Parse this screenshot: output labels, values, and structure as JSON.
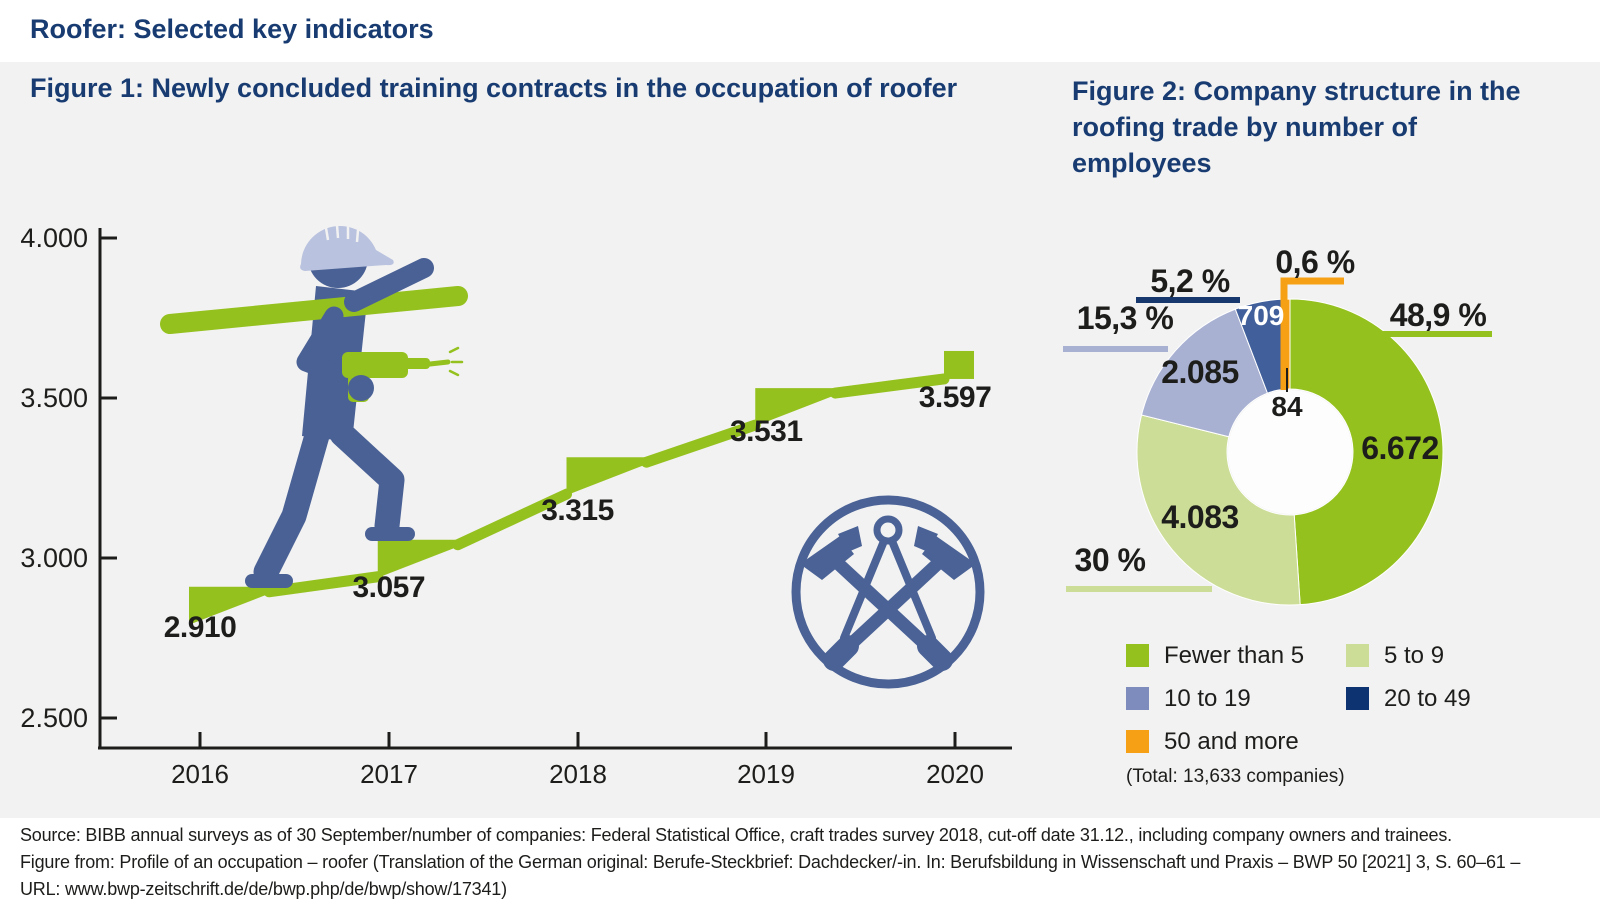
{
  "page": {
    "title": "Roofer: Selected key indicators"
  },
  "figure1": {
    "title": "Figure 1: Newly concluded training contracts in the occupation of roofer"
  },
  "figure2": {
    "title": "Figure 2: Company structure in the roofing trade by number of employees",
    "total_note": "(Total: 13,633 companies)"
  },
  "footer": {
    "lines": [
      "Source: BIBB annual surveys as of 30 September/number of companies: Federal Statistical Office, craft trades survey 2018, cut-off date 31.12., including company owners and trainees.",
      "Figure from: Profile of an occupation – roofer (Translation of the German original: Berufe-Steckbrief: Dachdecker/-in. In: Berufsbildung in Wissenschaft und Praxis – BWP 50 [2021] 3, S. 60–61 –",
      "URL: www.bwp-zeitschrift.de/de/bwp.php/de/bwp/show/17341)"
    ]
  },
  "colors": {
    "title_blue": "#183c72",
    "panel_gray": "#f2f2f2",
    "green": "#95c11f",
    "light_green": "#cbdd96",
    "periwinkle": "#a9b1d2",
    "navy_segment": "#41609b",
    "navy_dark": "#0e3371",
    "orange": "#f6a015",
    "worker_blue": "#4a6195",
    "helmet_blue": "#b9c2de",
    "text_black": "#1d1d1b"
  },
  "chart_data": [
    {
      "type": "line",
      "style": "staircase-pictogram",
      "title": "Figure 1: Newly concluded training contracts in the occupation of roofer",
      "x_labels": [
        "2016",
        "2017",
        "2018",
        "2019",
        "2020"
      ],
      "x": [
        2016,
        2017,
        2018,
        2019,
        2020
      ],
      "values": [
        2910,
        3057,
        3315,
        3531,
        3597
      ],
      "value_labels": [
        "2.910",
        "3.057",
        "3.315",
        "3.531",
        "3.597"
      ],
      "ytick_labels": [
        "4.000",
        "3.500",
        "3.000",
        "2.500"
      ],
      "ytick_values": [
        4000,
        3500,
        3000,
        2500
      ],
      "ylim": [
        2500,
        4000
      ],
      "grid": false,
      "line_color": "#95c11f"
    },
    {
      "type": "pie",
      "subtype": "donut",
      "title": "Figure 2: Company structure in the roofing trade by number of employees",
      "categories": [
        "Fewer than 5",
        "5 to 9",
        "10 to 19",
        "20 to 49",
        "50 and more"
      ],
      "values": [
        6672,
        4083,
        2085,
        709,
        84
      ],
      "value_labels": [
        "6.672",
        "4.083",
        "2.085",
        "709",
        "84"
      ],
      "percent_labels": [
        "48,9 %",
        "30 %",
        "15,3 %",
        "5,2 %",
        "0,6 %"
      ],
      "colors": [
        "#95c11f",
        "#cbdd96",
        "#a9b1d2",
        "#41609b",
        "#f6a015"
      ],
      "legend_colors": [
        "#95c11f",
        "#cbdd96",
        "#7d8bbd",
        "#0e3371",
        "#f6a015"
      ],
      "total_companies": "13,633",
      "legend_position": "bottom-left",
      "start_angle": "top",
      "direction": "clockwise"
    }
  ]
}
